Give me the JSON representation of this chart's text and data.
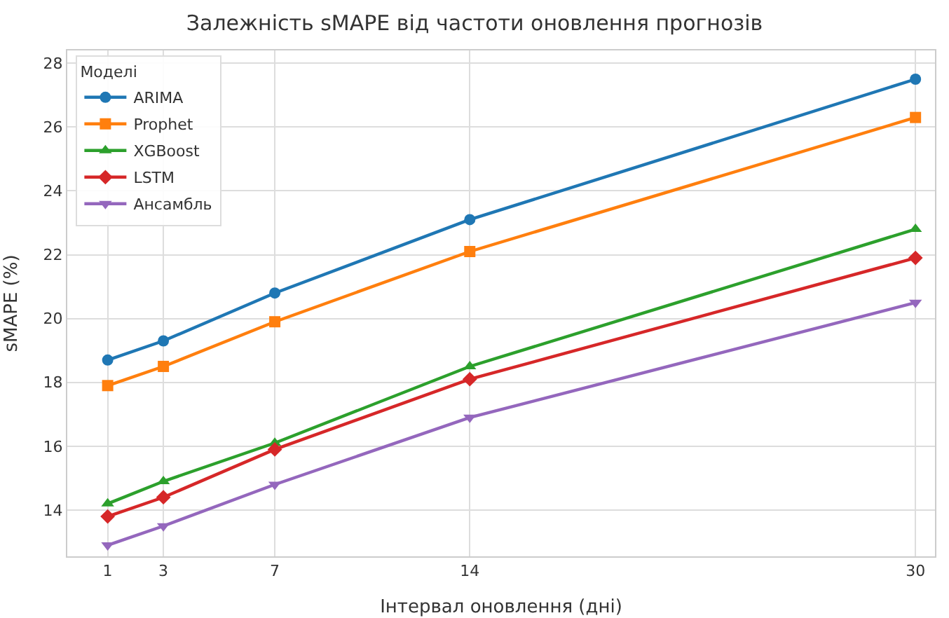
{
  "chart_data": {
    "type": "line",
    "title": "Залежність sMAPE від частоти оновлення прогнозів",
    "xlabel": "Інтервал оновлення (дні)",
    "ylabel": "sMAPE (%)",
    "legend_title": "Моделі",
    "x": [
      1,
      3,
      7,
      14,
      30
    ],
    "series": [
      {
        "name": "ARIMA",
        "color": "#1f77b4",
        "marker": "circle",
        "values": [
          18.7,
          19.3,
          20.8,
          23.1,
          27.5
        ]
      },
      {
        "name": "Prophet",
        "color": "#ff7f0e",
        "marker": "square",
        "values": [
          17.9,
          18.5,
          19.9,
          22.1,
          26.3
        ]
      },
      {
        "name": "XGBoost",
        "color": "#2ca02c",
        "marker": "triangle",
        "values": [
          14.2,
          14.9,
          16.1,
          18.5,
          22.8
        ]
      },
      {
        "name": "LSTM",
        "color": "#d62728",
        "marker": "diamond",
        "values": [
          13.8,
          14.4,
          15.9,
          18.1,
          21.9
        ]
      },
      {
        "name": "Ансамбль",
        "color": "#9467bd",
        "marker": "triangle-down",
        "values": [
          12.9,
          13.5,
          14.8,
          16.9,
          20.5
        ]
      }
    ],
    "xlim": [
      -0.45,
      30.7
    ],
    "xticks": [
      1,
      3,
      7,
      14,
      30
    ],
    "ylim": [
      12.55,
      28.4
    ],
    "yticks": [
      14,
      16,
      18,
      20,
      22,
      24,
      26,
      28
    ],
    "grid": true,
    "legend": "top left",
    "line_style": "solid"
  }
}
